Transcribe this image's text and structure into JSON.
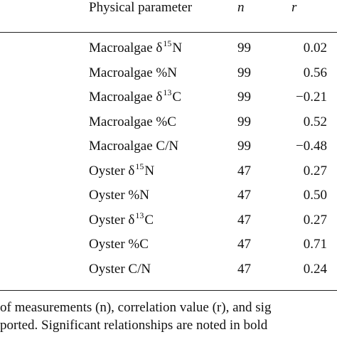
{
  "table": {
    "headers": {
      "parameter": "Physical parameter",
      "n": "n",
      "r": "r"
    },
    "rows": [
      {
        "prefix": "Macroalgae δ",
        "sup": "15",
        "suffix": "N",
        "n": "99",
        "r": "0.02"
      },
      {
        "prefix": "Macroalgae %N",
        "sup": "",
        "suffix": "",
        "n": "99",
        "r": "0.56"
      },
      {
        "prefix": "Macroalgae δ",
        "sup": "13",
        "suffix": "C",
        "n": "99",
        "r": "−0.21"
      },
      {
        "prefix": "Macroalgae %C",
        "sup": "",
        "suffix": "",
        "n": "99",
        "r": "0.52"
      },
      {
        "prefix": "Macroalgae C/N",
        "sup": "",
        "suffix": "",
        "n": "99",
        "r": "−0.48"
      },
      {
        "prefix": "Oyster δ",
        "sup": "15",
        "suffix": "N",
        "n": "47",
        "r": "0.27"
      },
      {
        "prefix": "Oyster %N",
        "sup": "",
        "suffix": "",
        "n": "47",
        "r": "0.50"
      },
      {
        "prefix": "Oyster δ",
        "sup": "13",
        "suffix": "C",
        "n": "47",
        "r": "0.27"
      },
      {
        "prefix": "Oyster %C",
        "sup": "",
        "suffix": "",
        "n": "47",
        "r": "0.71"
      },
      {
        "prefix": "Oyster C/N",
        "sup": "",
        "suffix": "",
        "n": "47",
        "r": "0.24"
      }
    ]
  },
  "footnote": {
    "line1": "of measurements (n), correlation value (r), and sig",
    "line2": "ported. Significant relationships are noted in bold"
  }
}
